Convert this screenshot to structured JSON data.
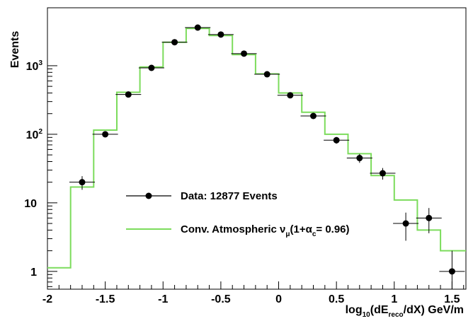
{
  "chart_data": {
    "type": "scatter",
    "title": "",
    "ylabel": "Events",
    "xlabel": {
      "prefix": "log",
      "sub1": "10",
      "mid1": "(dE",
      "sub2": "reco",
      "mid2": "/dX) GeV/m"
    },
    "xlim": [
      -2.0,
      1.62
    ],
    "ylim": [
      0.55,
      7000
    ],
    "y_scale": "log",
    "grid": false,
    "legend_position": "center-left",
    "x_ticks": [
      {
        "v": -2.0,
        "label": "-2"
      },
      {
        "v": -1.5,
        "label": "-1.5"
      },
      {
        "v": -1.0,
        "label": "-1"
      },
      {
        "v": -0.5,
        "label": "-0.5"
      },
      {
        "v": 0.0,
        "label": "0"
      },
      {
        "v": 0.5,
        "label": "0.5"
      },
      {
        "v": 1.0,
        "label": "1"
      },
      {
        "v": 1.5,
        "label": "1.5"
      }
    ],
    "y_ticks": [
      {
        "v": 1,
        "label": "1",
        "exp": ""
      },
      {
        "v": 10,
        "label": "10",
        "exp": ""
      },
      {
        "v": 100,
        "label": "10",
        "exp": "2"
      },
      {
        "v": 1000,
        "label": "10",
        "exp": "3"
      }
    ],
    "series": [
      {
        "name": "Data: 12877 Events",
        "kind": "points",
        "color": "#000000",
        "x": [
          -1.7,
          -1.5,
          -1.3,
          -1.1,
          -0.9,
          -0.7,
          -0.5,
          -0.3,
          -0.1,
          0.1,
          0.3,
          0.5,
          0.7,
          0.9,
          1.1,
          1.3,
          1.5
        ],
        "y": [
          20,
          100,
          380,
          930,
          2200,
          3600,
          2850,
          1500,
          750,
          370,
          185,
          82,
          45,
          27,
          5,
          6,
          1
        ],
        "yerr": [
          4.5,
          10,
          19.5,
          30.5,
          47,
          60,
          53.4,
          38.7,
          27.4,
          19.2,
          13.6,
          9.1,
          6.7,
          5.2,
          2.2,
          2.4,
          1.0
        ]
      },
      {
        "name": "Conv. Atmospheric",
        "name_sub": "μ",
        "name_nu": "ν",
        "name_tail": "(1+α",
        "name_tail_sub": "c",
        "name_end": "= 0.96)",
        "kind": "step",
        "color": "#7cdc5c",
        "edges": [
          -2.0,
          -1.8,
          -1.6,
          -1.4,
          -1.2,
          -1.0,
          -0.8,
          -0.6,
          -0.4,
          -0.2,
          0.0,
          0.2,
          0.4,
          0.6,
          0.8,
          1.0,
          1.2,
          1.4,
          1.62
        ],
        "values": [
          1.13,
          17,
          115,
          410,
          960,
          2200,
          3500,
          2750,
          1450,
          760,
          400,
          210,
          100,
          52,
          25,
          11,
          4,
          2
        ]
      }
    ]
  }
}
